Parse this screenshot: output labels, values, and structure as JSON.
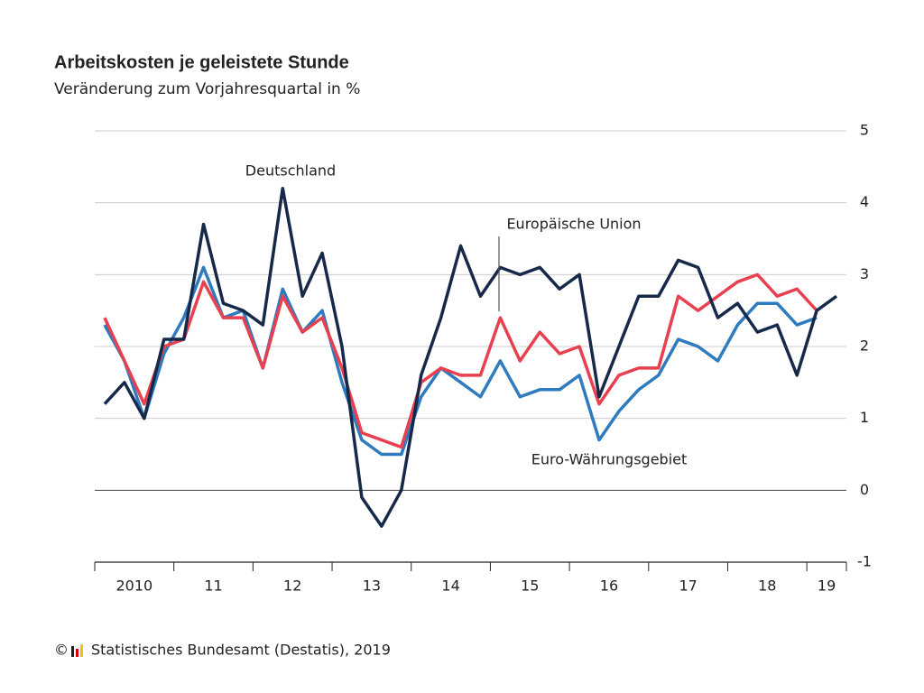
{
  "chart_data": {
    "type": "line",
    "title": "Arbeitskosten je geleistete Stunde",
    "subtitle": "Veränderung zum Vorjahresquartal in %",
    "x": [
      2010.125,
      2010.375,
      2010.625,
      2010.875,
      2011.125,
      2011.375,
      2011.625,
      2011.875,
      2012.125,
      2012.375,
      2012.625,
      2012.875,
      2013.125,
      2013.375,
      2013.625,
      2013.875,
      2014.125,
      2014.375,
      2014.625,
      2014.875,
      2015.125,
      2015.375,
      2015.625,
      2015.875,
      2016.125,
      2016.375,
      2016.625,
      2016.875,
      2017.125,
      2017.375,
      2017.625,
      2017.875,
      2018.125,
      2018.375,
      2018.625,
      2018.875,
      2019.125,
      2019.375
    ],
    "series": [
      {
        "name": "Deutschland",
        "color": "#16294a",
        "values": [
          1.2,
          1.5,
          1.0,
          2.1,
          2.1,
          3.7,
          2.6,
          2.5,
          2.3,
          4.2,
          2.7,
          3.3,
          2.0,
          -0.1,
          -0.5,
          0.0,
          1.6,
          2.4,
          3.4,
          2.7,
          3.1,
          3.0,
          3.1,
          2.8,
          3.0,
          1.3,
          2.0,
          2.7,
          2.7,
          3.2,
          3.1,
          2.4,
          2.6,
          2.2,
          2.3,
          1.6,
          2.5,
          2.7
        ]
      },
      {
        "name": "Europäische Union",
        "color": "#e8404f",
        "values": [
          2.4,
          1.8,
          1.2,
          2.0,
          2.1,
          2.9,
          2.4,
          2.4,
          1.7,
          2.7,
          2.2,
          2.4,
          1.7,
          0.8,
          0.7,
          0.6,
          1.5,
          1.7,
          1.6,
          1.6,
          2.4,
          1.8,
          2.2,
          1.9,
          2.0,
          1.2,
          1.6,
          1.7,
          1.7,
          2.7,
          2.5,
          2.7,
          2.9,
          3.0,
          2.7,
          2.8,
          2.5,
          null
        ]
      },
      {
        "name": "Euro-Währungsgebiet",
        "color": "#2f7bbf",
        "values": [
          2.3,
          1.8,
          1.0,
          1.9,
          2.4,
          3.1,
          2.4,
          2.5,
          1.7,
          2.8,
          2.2,
          2.5,
          1.5,
          0.7,
          0.5,
          0.5,
          1.3,
          1.7,
          1.5,
          1.3,
          1.8,
          1.3,
          1.4,
          1.4,
          1.6,
          0.7,
          1.1,
          1.4,
          1.6,
          2.1,
          2.0,
          1.8,
          2.3,
          2.6,
          2.6,
          2.3,
          2.4,
          null
        ]
      }
    ],
    "xlim": [
      2010,
      2019.5
    ],
    "xticks": [
      {
        "value": 2010,
        "label": "2010"
      },
      {
        "value": 2011,
        "label": "11"
      },
      {
        "value": 2012,
        "label": "12"
      },
      {
        "value": 2013,
        "label": "13"
      },
      {
        "value": 2014,
        "label": "14"
      },
      {
        "value": 2015,
        "label": "15"
      },
      {
        "value": 2016,
        "label": "16"
      },
      {
        "value": 2017,
        "label": "17"
      },
      {
        "value": 2018,
        "label": "18"
      },
      {
        "value": 2019,
        "label": "19"
      }
    ],
    "ylim": [
      -1,
      5
    ],
    "yticks": [
      -1,
      0,
      1,
      2,
      3,
      4,
      5
    ],
    "grid": true,
    "source": "Statistisches Bundesamt (Destatis), 2019",
    "copyright": "©"
  }
}
